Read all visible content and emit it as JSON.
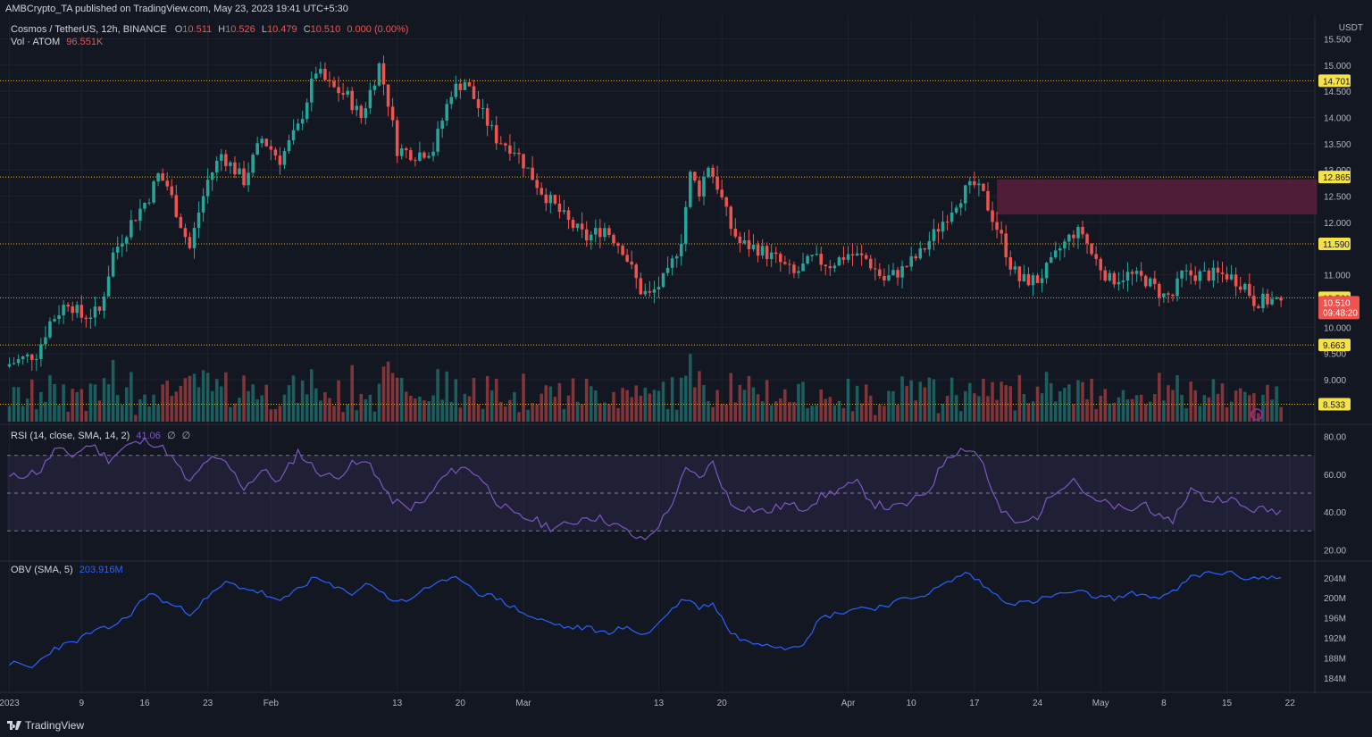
{
  "publisher_line": "AMBCrypto_TA published on TradingView.com, May 23, 2023 19:41 UTC+5:30",
  "footer_brand": "TradingView",
  "price_scale_unit": "USDT",
  "main_legend": {
    "symbol": "Cosmos / TetherUS, 12h, BINANCE",
    "o_label": "O",
    "o_val": "10.511",
    "h_label": "H",
    "h_val": "10.526",
    "l_label": "L",
    "l_val": "10.479",
    "c_label": "C",
    "c_val": "10.510",
    "chg": "0.000 (0.00%)"
  },
  "vol_legend": {
    "label": "Vol · ATOM",
    "value": "96.551K"
  },
  "rsi_legend": {
    "label": "RSI (14, close, SMA, 14, 2)",
    "value": "41.06",
    "extra1": "∅",
    "extra2": "∅"
  },
  "obv_legend": {
    "label": "OBV (SMA, 5)",
    "value": "203.916M"
  },
  "colors": {
    "background": "#131722",
    "up": "#26a69a",
    "down": "#ef5350",
    "level_line": "#f0b90b",
    "level_badge": "#f5e148",
    "zone": "#5b1f3a",
    "rsi": "#7e57c2",
    "obv": "#2962ff",
    "grid": "#1e222d"
  },
  "chart_data": [
    {
      "type": "candlestick",
      "title": "Cosmos / TetherUS, 12h, BINANCE",
      "ylim": [
        8.2,
        15.9
      ],
      "y_ticks": [
        "15.500",
        "15.000",
        "14.500",
        "14.000",
        "13.500",
        "13.000",
        "12.500",
        "12.000",
        "11.000",
        "10.000",
        "9.500",
        "9.000"
      ],
      "x_ticks": [
        "2023",
        "9",
        "16",
        "23",
        "Feb",
        "13",
        "20",
        "Mar",
        "13",
        "20",
        "Apr",
        "10",
        "17",
        "24",
        "May",
        "8",
        "15",
        "22"
      ],
      "x_tick_index": [
        0,
        16,
        30,
        44,
        58,
        86,
        100,
        114,
        144,
        158,
        186,
        200,
        214,
        228,
        242,
        256,
        270,
        284
      ],
      "key_levels": [
        "14.701",
        "12.865",
        "11.590",
        "10.561",
        "9.663",
        "8.533"
      ],
      "current_price": "10.510",
      "countdown": "09:48:20",
      "supply_zone": {
        "bottom": 12.15,
        "top": 12.82,
        "from_index": 219,
        "to_index": 290
      },
      "close_anchors": [
        [
          0,
          9.3
        ],
        [
          6,
          9.5
        ],
        [
          9,
          10.1
        ],
        [
          13,
          10.5
        ],
        [
          16,
          10.2
        ],
        [
          20,
          10.3
        ],
        [
          23,
          11.4
        ],
        [
          27,
          12.0
        ],
        [
          31,
          12.5
        ],
        [
          33,
          12.9
        ],
        [
          35,
          12.7
        ],
        [
          40,
          11.5
        ],
        [
          42,
          12.2
        ],
        [
          44,
          12.8
        ],
        [
          47,
          13.3
        ],
        [
          52,
          12.8
        ],
        [
          56,
          13.6
        ],
        [
          60,
          13.2
        ],
        [
          64,
          13.8
        ],
        [
          68,
          14.9
        ],
        [
          71,
          14.6
        ],
        [
          75,
          14.4
        ],
        [
          78,
          14.0
        ],
        [
          82,
          15.0
        ],
        [
          84,
          14.3
        ],
        [
          86,
          13.4
        ],
        [
          90,
          13.3
        ],
        [
          94,
          13.4
        ],
        [
          98,
          14.5
        ],
        [
          101,
          14.7
        ],
        [
          104,
          14.2
        ],
        [
          108,
          13.6
        ],
        [
          112,
          13.4
        ],
        [
          115,
          13.0
        ],
        [
          118,
          12.6
        ],
        [
          121,
          12.3
        ],
        [
          124,
          12.0
        ],
        [
          128,
          11.7
        ],
        [
          132,
          11.9
        ],
        [
          136,
          11.5
        ],
        [
          140,
          10.7
        ],
        [
          142,
          10.6
        ],
        [
          146,
          11.0
        ],
        [
          149,
          11.7
        ],
        [
          151,
          12.9
        ],
        [
          153,
          12.6
        ],
        [
          155,
          13.1
        ],
        [
          157,
          12.7
        ],
        [
          160,
          11.9
        ],
        [
          162,
          11.6
        ],
        [
          166,
          11.5
        ],
        [
          170,
          11.3
        ],
        [
          174,
          11.0
        ],
        [
          178,
          11.3
        ],
        [
          182,
          11.2
        ],
        [
          186,
          11.4
        ],
        [
          190,
          11.3
        ],
        [
          194,
          10.9
        ],
        [
          198,
          11.1
        ],
        [
          202,
          11.4
        ],
        [
          206,
          11.9
        ],
        [
          210,
          12.4
        ],
        [
          212,
          12.6
        ],
        [
          214,
          12.7
        ],
        [
          216,
          12.5
        ],
        [
          218,
          12.1
        ],
        [
          220,
          11.7
        ],
        [
          222,
          11.2
        ],
        [
          224,
          10.9
        ],
        [
          228,
          10.9
        ],
        [
          231,
          11.2
        ],
        [
          233,
          11.5
        ],
        [
          236,
          11.8
        ],
        [
          238,
          11.8
        ],
        [
          240,
          11.4
        ],
        [
          244,
          10.9
        ],
        [
          248,
          11.0
        ],
        [
          252,
          10.9
        ],
        [
          256,
          10.6
        ],
        [
          258,
          10.6
        ],
        [
          260,
          11.0
        ],
        [
          263,
          11.0
        ],
        [
          266,
          11.0
        ],
        [
          270,
          11.0
        ],
        [
          274,
          10.8
        ],
        [
          276,
          10.5
        ],
        [
          280,
          10.51
        ],
        [
          282,
          10.51
        ]
      ]
    },
    {
      "type": "bar",
      "title": "Vol · ATOM",
      "note": "volume histogram under price"
    },
    {
      "type": "line",
      "title": "RSI (14, close, SMA, 14, 2)",
      "ylim": [
        15,
        85
      ],
      "y_ticks": [
        "80.00",
        "60.00",
        "40.00",
        "20.00"
      ],
      "bands": [
        30,
        50,
        70
      ],
      "anchors": [
        [
          0,
          58
        ],
        [
          7,
          62
        ],
        [
          10,
          73
        ],
        [
          14,
          70
        ],
        [
          18,
          76
        ],
        [
          22,
          68
        ],
        [
          26,
          75
        ],
        [
          31,
          78
        ],
        [
          35,
          72
        ],
        [
          40,
          55
        ],
        [
          44,
          68
        ],
        [
          48,
          66
        ],
        [
          52,
          53
        ],
        [
          56,
          62
        ],
        [
          60,
          56
        ],
        [
          64,
          72
        ],
        [
          68,
          62
        ],
        [
          72,
          58
        ],
        [
          76,
          65
        ],
        [
          80,
          66
        ],
        [
          84,
          48
        ],
        [
          88,
          42
        ],
        [
          92,
          45
        ],
        [
          96,
          58
        ],
        [
          100,
          64
        ],
        [
          104,
          60
        ],
        [
          108,
          46
        ],
        [
          112,
          38
        ],
        [
          116,
          36
        ],
        [
          120,
          32
        ],
        [
          124,
          33
        ],
        [
          128,
          38
        ],
        [
          132,
          36
        ],
        [
          136,
          31
        ],
        [
          140,
          25
        ],
        [
          142,
          27
        ],
        [
          146,
          40
        ],
        [
          150,
          62
        ],
        [
          153,
          58
        ],
        [
          156,
          66
        ],
        [
          160,
          44
        ],
        [
          164,
          42
        ],
        [
          168,
          40
        ],
        [
          172,
          44
        ],
        [
          176,
          42
        ],
        [
          180,
          48
        ],
        [
          184,
          52
        ],
        [
          188,
          55
        ],
        [
          192,
          44
        ],
        [
          196,
          42
        ],
        [
          200,
          45
        ],
        [
          204,
          52
        ],
        [
          208,
          70
        ],
        [
          212,
          74
        ],
        [
          214,
          72
        ],
        [
          216,
          66
        ],
        [
          218,
          50
        ],
        [
          220,
          40
        ],
        [
          224,
          33
        ],
        [
          228,
          38
        ],
        [
          232,
          52
        ],
        [
          236,
          58
        ],
        [
          240,
          46
        ],
        [
          244,
          44
        ],
        [
          248,
          40
        ],
        [
          252,
          45
        ],
        [
          256,
          34
        ],
        [
          258,
          36
        ],
        [
          262,
          52
        ],
        [
          266,
          46
        ],
        [
          270,
          48
        ],
        [
          274,
          42
        ],
        [
          278,
          41
        ],
        [
          282,
          41
        ]
      ]
    },
    {
      "type": "line",
      "title": "OBV (SMA, 5)",
      "ylim": [
        182,
        207
      ],
      "y_ticks": [
        "204M",
        "200M",
        "196M",
        "192M",
        "188M",
        "184M"
      ],
      "anchors": [
        [
          0,
          187
        ],
        [
          5,
          186
        ],
        [
          10,
          190
        ],
        [
          14,
          191
        ],
        [
          18,
          193
        ],
        [
          22,
          194
        ],
        [
          26,
          196
        ],
        [
          31,
          201
        ],
        [
          35,
          199
        ],
        [
          40,
          197
        ],
        [
          44,
          200
        ],
        [
          48,
          203
        ],
        [
          52,
          202
        ],
        [
          56,
          201
        ],
        [
          60,
          199
        ],
        [
          64,
          202
        ],
        [
          68,
          204
        ],
        [
          72,
          202
        ],
        [
          76,
          201
        ],
        [
          80,
          203
        ],
        [
          84,
          200
        ],
        [
          88,
          199
        ],
        [
          92,
          202
        ],
        [
          96,
          203
        ],
        [
          100,
          204
        ],
        [
          104,
          201
        ],
        [
          108,
          200
        ],
        [
          112,
          198
        ],
        [
          116,
          196
        ],
        [
          120,
          195
        ],
        [
          124,
          194
        ],
        [
          128,
          194
        ],
        [
          132,
          193
        ],
        [
          136,
          194
        ],
        [
          140,
          193
        ],
        [
          142,
          193
        ],
        [
          146,
          197
        ],
        [
          150,
          200
        ],
        [
          153,
          198
        ],
        [
          156,
          199
        ],
        [
          160,
          193
        ],
        [
          164,
          191
        ],
        [
          168,
          191
        ],
        [
          172,
          190
        ],
        [
          176,
          191
        ],
        [
          180,
          196
        ],
        [
          184,
          197
        ],
        [
          188,
          198
        ],
        [
          192,
          198
        ],
        [
          196,
          199
        ],
        [
          200,
          200
        ],
        [
          204,
          201
        ],
        [
          208,
          203
        ],
        [
          212,
          205
        ],
        [
          214,
          204
        ],
        [
          218,
          201
        ],
        [
          222,
          199
        ],
        [
          226,
          199
        ],
        [
          230,
          200
        ],
        [
          234,
          201
        ],
        [
          238,
          201
        ],
        [
          242,
          200
        ],
        [
          246,
          200
        ],
        [
          250,
          201
        ],
        [
          254,
          200
        ],
        [
          258,
          201
        ],
        [
          262,
          204
        ],
        [
          266,
          205
        ],
        [
          270,
          205
        ],
        [
          274,
          204
        ],
        [
          278,
          204
        ],
        [
          282,
          204
        ]
      ]
    }
  ]
}
